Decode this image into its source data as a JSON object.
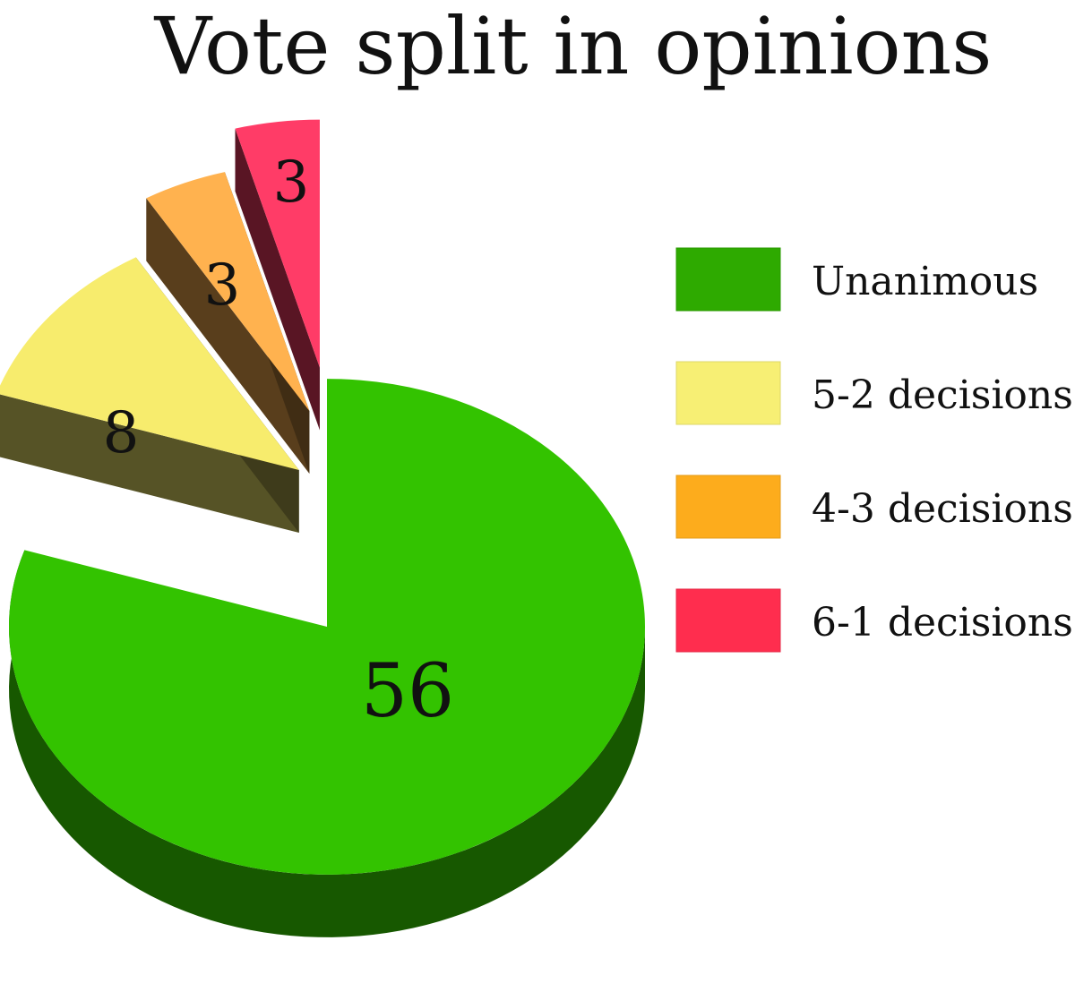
{
  "chart_data": {
    "type": "pie",
    "title": "Vote split in opinions",
    "categories": [
      "Unanimous",
      "5-2 decisions",
      "4-3 decisions",
      "6-1 decisions"
    ],
    "values": [
      56,
      8,
      3,
      3
    ],
    "colors": [
      "#33c300",
      "#f7ec6d",
      "#ffb24f",
      "#ff3c67"
    ],
    "legend_colors": [
      "#2eaa00",
      "#f7ef74",
      "#fdac1c",
      "#ff2d4e"
    ],
    "legend": {
      "position": "right"
    },
    "exploded": [
      "5-2 decisions",
      "4-3 decisions",
      "6-1 decisions"
    ],
    "three_d": true
  }
}
